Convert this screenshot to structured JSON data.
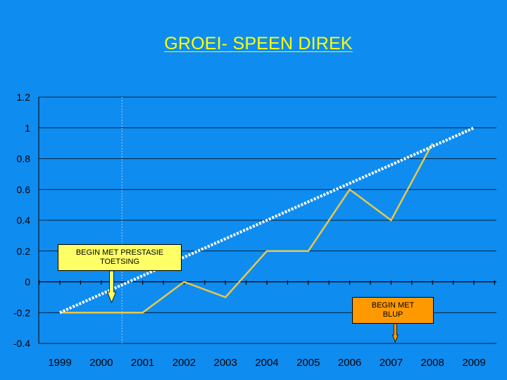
{
  "chart_data": {
    "type": "line",
    "title": "GROEI- SPEEN DIREK",
    "categories": [
      "1999",
      "2000",
      "2001",
      "2002",
      "2003",
      "2004",
      "2005",
      "2006",
      "2007",
      "2008",
      "2009"
    ],
    "series": [
      {
        "values": [
          -0.2,
          -0.2,
          -0.2,
          0.0,
          -0.1,
          0.2,
          0.2,
          0.6,
          0.4,
          0.9,
          null
        ],
        "color": "#e6c84a",
        "style": "solid"
      },
      {
        "values": [
          -0.2,
          -0.08,
          0.04,
          0.16,
          0.28,
          0.4,
          0.52,
          0.64,
          0.76,
          0.88,
          1.0
        ],
        "color": "#ffffff",
        "style": "dotted",
        "kind": "trendline"
      }
    ],
    "yticks": [
      1.2,
      1,
      0.8,
      0.6,
      0.4,
      0.2,
      0,
      -0.2,
      -0.4
    ],
    "ytick_labels": [
      "1.2",
      "1",
      "0.8",
      "0.6",
      "0.4",
      "0.2",
      "0",
      "-0.2",
      "-0.4"
    ],
    "ylim": [
      -0.4,
      1.2
    ],
    "grid": true,
    "reference_line_x": 2000.5,
    "annotations": [
      {
        "text_line1": "BEGIN MET PRESTASIE",
        "text_line2": "TOETSING",
        "points_to_x": 2000.25,
        "color": "#ffff66"
      },
      {
        "text_line1": "BEGIN MET",
        "text_line2": "BLUP",
        "points_to_x": 2007.1,
        "color": "#ff9900"
      }
    ],
    "colors": {
      "background": "#0f8cf0",
      "plot_area": "#0f8cf0",
      "title": "#ffff00",
      "gridline": "#000000"
    }
  }
}
